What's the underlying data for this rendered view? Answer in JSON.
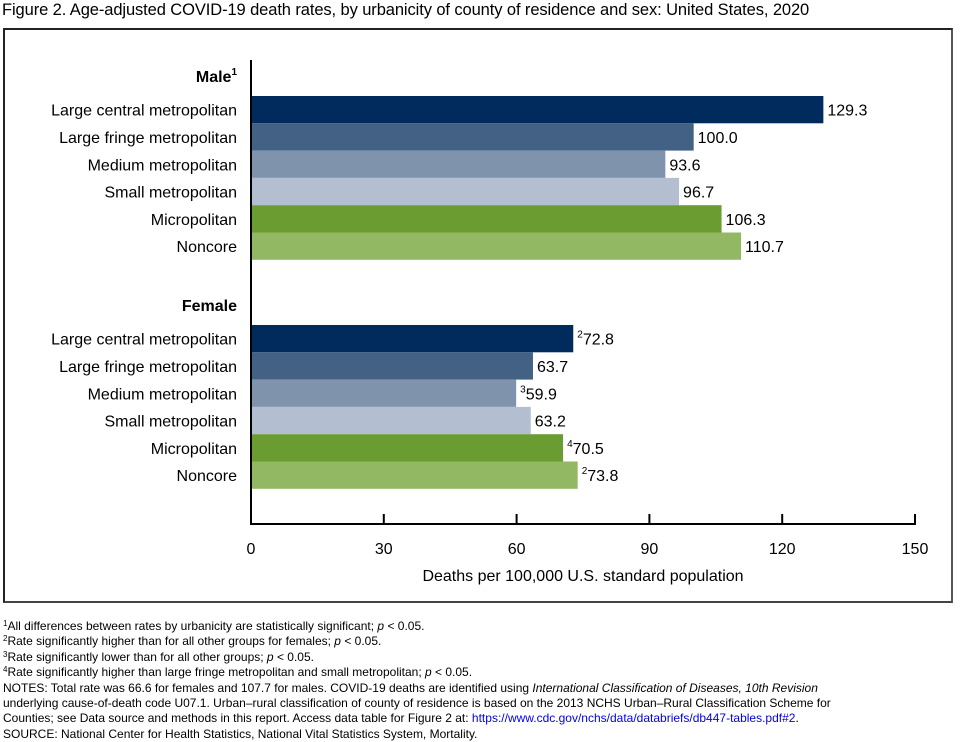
{
  "title": "Figure 2. Age-adjusted COVID-19 death rates, by urbanicity of county of residence and sex: United States, 2020",
  "colors": {
    "Large central metropolitan": "#002b5c",
    "Large fringe metropolitan": "#426185",
    "Medium metropolitan": "#7f93ac",
    "Small metropolitan": "#b3bfd0",
    "Micropolitan": "#6b9c31",
    "Noncore": "#92b864"
  },
  "chart_data": {
    "type": "bar",
    "orientation": "horizontal",
    "title": "Figure 2. Age-adjusted COVID-19 death rates, by urbanicity of county of residence and sex: United States, 2020",
    "xlabel": "Deaths per 100,000 U.S. standard population",
    "ylabel": "",
    "xlim": [
      0,
      150
    ],
    "xticks": [
      0,
      30,
      60,
      90,
      120,
      150
    ],
    "grid": false,
    "legend": "none",
    "categories": [
      "Large central metropolitan",
      "Large fringe metropolitan",
      "Medium metropolitan",
      "Small metropolitan",
      "Micropolitan",
      "Noncore"
    ],
    "groups": [
      {
        "name": "Male",
        "footnote": "1",
        "values": [
          129.3,
          100.0,
          93.6,
          96.7,
          106.3,
          110.7
        ],
        "labels": [
          "129.3",
          "100.0",
          "93.6",
          "96.7",
          "106.3",
          "110.7"
        ],
        "label_footnotes": [
          "",
          "",
          "",
          "",
          "",
          ""
        ]
      },
      {
        "name": "Female",
        "footnote": "",
        "values": [
          72.8,
          63.7,
          59.9,
          63.2,
          70.5,
          73.8
        ],
        "labels": [
          "72.8",
          "63.7",
          "59.9",
          "63.2",
          "70.5",
          "73.8"
        ],
        "label_footnotes": [
          "2",
          "",
          "3",
          "",
          "4",
          "2"
        ]
      }
    ]
  },
  "footnotes": [
    {
      "mark": "1",
      "text": "All differences between rates by urbanicity are statistically significant; ",
      "p": "p",
      "tail": " < 0.05."
    },
    {
      "mark": "2",
      "text": "Rate significantly higher than for all other groups for females; ",
      "p": "p",
      "tail": " < 0.05."
    },
    {
      "mark": "3",
      "text": "Rate significantly lower than for all other groups; ",
      "p": "p",
      "tail": " < 0.05."
    },
    {
      "mark": "4",
      "text": "Rate significantly higher than large fringe metropolitan and small metropolitan; ",
      "p": "p",
      "tail": " < 0.05."
    }
  ],
  "notes": {
    "line1_a": "NOTES: Total rate was 66.6 for females and 107.7 for males. COVID-19 deaths are identified using ",
    "line1_italic": "International Classification of Diseases, 10th Revision",
    "line2": "underlying cause-of-death code U07.1. Urban–rural classification of county of residence is based on the 2013 NCHS Urban–Rural Classification Scheme for",
    "line3_a": "Counties; see Data source and methods in this report. Access data table for Figure 2 at: ",
    "line3_link": "https://www.cdc.gov/nchs/data/databriefs/db447-tables.pdf#2",
    "line3_b": ".",
    "source": "SOURCE: National Center for Health Statistics, National Vital Statistics System, Mortality."
  }
}
